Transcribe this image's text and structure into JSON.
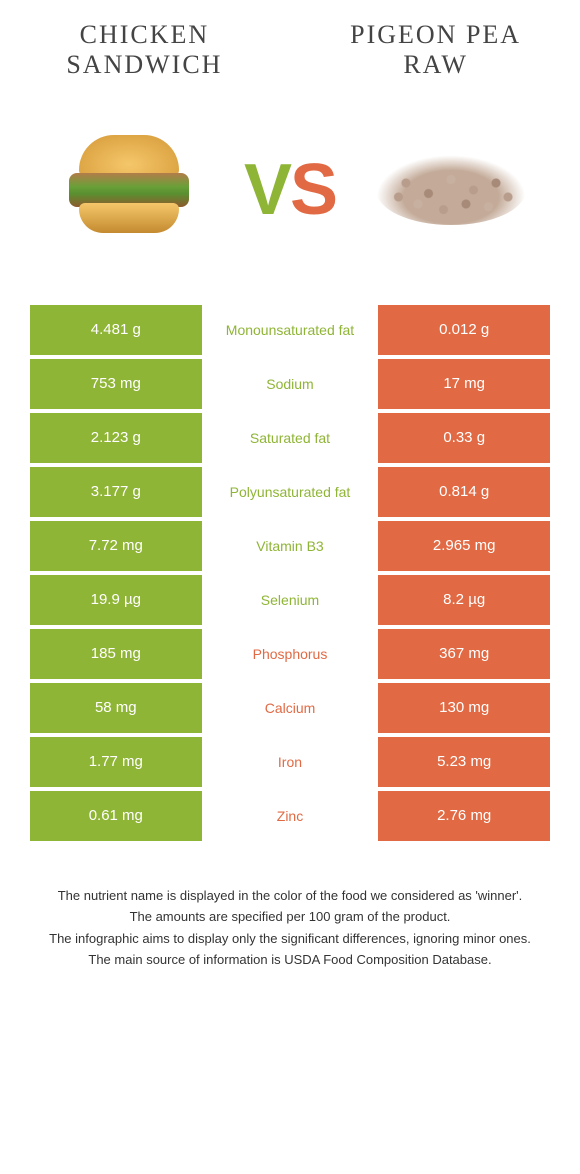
{
  "header": {
    "left_title": "CHICKEN SANDWICH",
    "right_title": "PIGEON PEA RAW",
    "vs_v": "V",
    "vs_s": "S"
  },
  "colors": {
    "left": "#8fb536",
    "right": "#e16a44",
    "left_text": "#8fb536",
    "right_text": "#e16a44"
  },
  "rows": [
    {
      "left": "4.481 g",
      "label": "Monounsaturated fat",
      "right": "0.012 g",
      "winner": "left"
    },
    {
      "left": "753 mg",
      "label": "Sodium",
      "right": "17 mg",
      "winner": "left"
    },
    {
      "left": "2.123 g",
      "label": "Saturated fat",
      "right": "0.33 g",
      "winner": "left"
    },
    {
      "left": "3.177 g",
      "label": "Polyunsaturated fat",
      "right": "0.814 g",
      "winner": "left"
    },
    {
      "left": "7.72 mg",
      "label": "Vitamin B3",
      "right": "2.965 mg",
      "winner": "left"
    },
    {
      "left": "19.9 µg",
      "label": "Selenium",
      "right": "8.2 µg",
      "winner": "left"
    },
    {
      "left": "185 mg",
      "label": "Phosphorus",
      "right": "367 mg",
      "winner": "right"
    },
    {
      "left": "58 mg",
      "label": "Calcium",
      "right": "130 mg",
      "winner": "right"
    },
    {
      "left": "1.77 mg",
      "label": "Iron",
      "right": "5.23 mg",
      "winner": "right"
    },
    {
      "left": "0.61 mg",
      "label": "Zinc",
      "right": "2.76 mg",
      "winner": "right"
    }
  ],
  "footer": {
    "l1": "The nutrient name is displayed in the color of the food we considered as 'winner'.",
    "l2": "The amounts are specified per 100 gram of the product.",
    "l3": "The infographic aims to display only the significant differences, ignoring minor ones.",
    "l4": "The main source of information is USDA Food Composition Database."
  }
}
